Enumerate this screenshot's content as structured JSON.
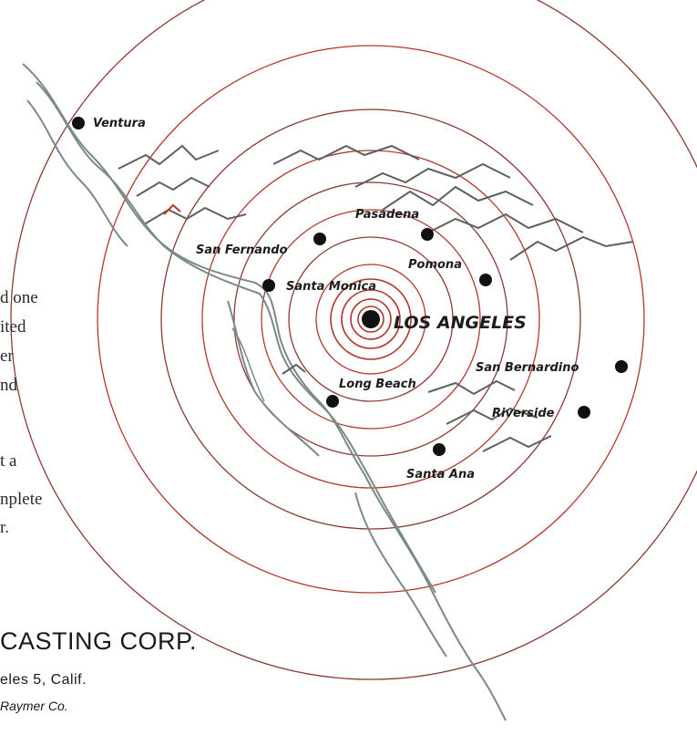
{
  "map": {
    "cities": [
      {
        "name": "Ventura"
      },
      {
        "name": "Pasadena"
      },
      {
        "name": "San Fernando"
      },
      {
        "name": "Pomona"
      },
      {
        "name": "Santa Monica"
      },
      {
        "name": "LOS ANGELES"
      },
      {
        "name": "San Bernardino"
      },
      {
        "name": "Long Beach"
      },
      {
        "name": "Riverside"
      },
      {
        "name": "Santa Ana"
      }
    ],
    "colors": {
      "rings": "#b0382c",
      "coast": "#7a8a88",
      "mountains": "#5c6060",
      "dots": "#111111"
    }
  },
  "text_fragments": [
    "d one",
    "ited",
    "er",
    "nd",
    "t a",
    "nplete",
    "r."
  ],
  "footer": {
    "corp": "CASTING CORP.",
    "address": "eles 5, Calif.",
    "agency": "Raymer Co."
  }
}
